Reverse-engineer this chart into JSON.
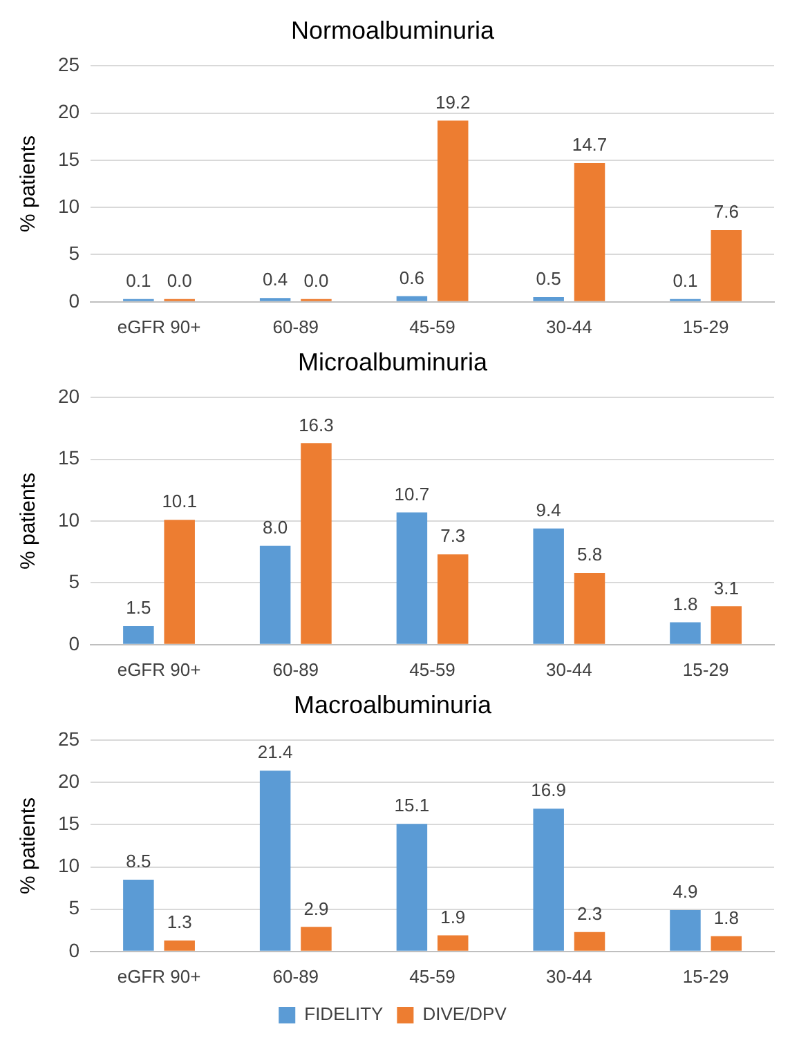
{
  "chart_data": [
    {
      "type": "bar",
      "title": "Normoalbuminuria",
      "ylabel": "% patients",
      "categories": [
        "eGFR 90+",
        "60-89",
        "45-59",
        "30-44",
        "15-29"
      ],
      "ylim": [
        0,
        25
      ],
      "yticks": [
        0,
        5,
        10,
        15,
        20,
        25
      ],
      "grid": "y",
      "legend": false,
      "series": [
        {
          "color": "#5b9bd5",
          "values": [
            0.1,
            0.4,
            0.6,
            0.5,
            0.1
          ],
          "value_labels": [
            "0.1",
            "0.4",
            "0.6",
            "0.5",
            "0.1"
          ]
        },
        {
          "color": "#ed7d31",
          "values": [
            0,
            0,
            19.2,
            14.7,
            7.6
          ],
          "value_labels": [
            "0.0",
            "0.0",
            "19.2",
            "14.7",
            "7.6"
          ]
        }
      ]
    },
    {
      "type": "bar",
      "title": "Microalbuminuria",
      "ylabel": "% patients",
      "categories": [
        "eGFR 90+",
        "60-89",
        "45-59",
        "30-44",
        "15-29"
      ],
      "ylim": [
        0,
        20
      ],
      "yticks": [
        0,
        5,
        10,
        15,
        20
      ],
      "grid": "y",
      "legend": false,
      "series": [
        {
          "color": "#5b9bd5",
          "values": [
            1.5,
            8,
            10.7,
            9.4,
            1.8
          ],
          "value_labels": [
            "1.5",
            "8.0",
            "10.7",
            "9.4",
            "1.8"
          ]
        },
        {
          "color": "#ed7d31",
          "values": [
            10.1,
            16.3,
            7.3,
            5.8,
            3.1
          ],
          "value_labels": [
            "10.1",
            "16.3",
            "7.3",
            "5.8",
            "3.1"
          ]
        }
      ]
    },
    {
      "type": "bar",
      "title": "Macroalbuminuria",
      "ylabel": "% patients",
      "categories": [
        "eGFR 90+",
        "60-89",
        "45-59",
        "30-44",
        "15-29"
      ],
      "ylim": [
        0,
        25
      ],
      "yticks": [
        0,
        5,
        10,
        15,
        20,
        25
      ],
      "grid": "y",
      "legend": "bottom",
      "series": [
        {
          "name": "FIDELITY",
          "color": "#5b9bd5",
          "values": [
            8.5,
            21.4,
            15.1,
            16.9,
            4.9
          ],
          "value_labels": [
            "8.5",
            "21.4",
            "15.1",
            "16.9",
            "4.9"
          ]
        },
        {
          "name": "DIVE/DPV",
          "color": "#ed7d31",
          "values": [
            1.3,
            2.9,
            1.9,
            2.3,
            1.8
          ],
          "value_labels": [
            "1.3",
            "2.9",
            "1.9",
            "2.3",
            "1.8"
          ]
        }
      ]
    }
  ]
}
